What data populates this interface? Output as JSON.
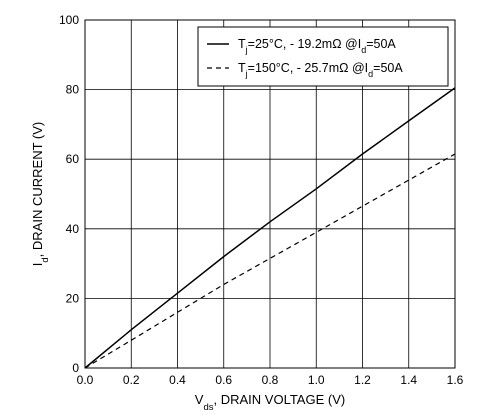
{
  "chart_data": {
    "type": "line",
    "x_label": {
      "main": "V",
      "sub": "ds",
      "rest": ", DRAIN VOLTAGE (V)"
    },
    "y_label": {
      "main": "I",
      "sub": "d",
      "rest": ", DRAIN CURRENT (V)"
    },
    "xlim": [
      0,
      1.6
    ],
    "ylim": [
      0,
      100
    ],
    "x_ticks": [
      "0.0",
      "0.2",
      "0.4",
      "0.6",
      "0.8",
      "1.0",
      "1.2",
      "1.4",
      "1.6"
    ],
    "y_ticks": [
      "0",
      "20",
      "40",
      "60",
      "80",
      "100"
    ],
    "grid": true,
    "legend_position": "top-right",
    "series": [
      {
        "name": "T=25°C, - 19.2mΩ @I=50A",
        "legend_parts": [
          "T",
          "j",
          "=25°C, - 19.2mΩ @I",
          "d",
          "=50A"
        ],
        "style": "solid",
        "x": [
          0.0,
          0.2,
          0.4,
          0.6,
          0.8,
          1.0,
          1.2,
          1.4,
          1.6
        ],
        "y": [
          0,
          11,
          21.5,
          32,
          42,
          51.5,
          61.5,
          71,
          80.5
        ]
      },
      {
        "name": "T=150°C, - 25.7mΩ @I=50A",
        "legend_parts": [
          "T",
          "j",
          "=150°C, - 25.7mΩ @I",
          "d",
          "=50A"
        ],
        "style": "dashed",
        "x": [
          0.0,
          0.2,
          0.4,
          0.6,
          0.8,
          1.0,
          1.2,
          1.4,
          1.6
        ],
        "y": [
          0,
          8,
          16,
          24,
          31.5,
          39,
          46.5,
          54,
          61.5
        ]
      }
    ]
  }
}
